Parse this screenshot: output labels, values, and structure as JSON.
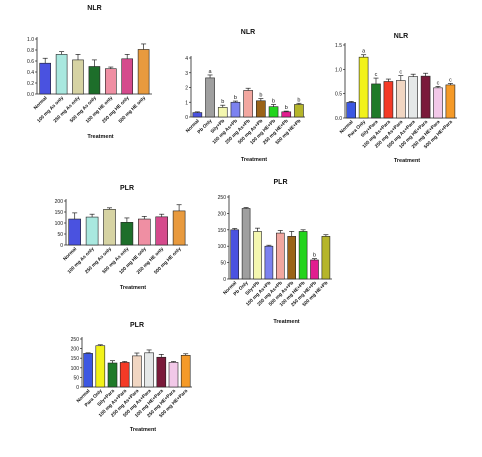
{
  "chart_data": [
    {
      "type": "bar",
      "title": "NLR",
      "xlabel": "Treatment",
      "ylabel": "",
      "ylim": [
        0,
        1.0
      ],
      "yticks": [
        "0.0",
        "0.2",
        "0.4",
        "0.6",
        "0.8",
        "1.0"
      ],
      "categories": [
        "Normal",
        "100 mg As only",
        "250 mg As only",
        "500 mg As only",
        "100 mg HE only",
        "250 mg HE only",
        "500 mg HE only"
      ],
      "values": [
        0.56,
        0.72,
        0.62,
        0.5,
        0.46,
        0.64,
        0.81
      ],
      "errors": [
        0.09,
        0.05,
        0.1,
        0.12,
        0.03,
        0.08,
        0.1
      ],
      "colors": [
        "#4a52e0",
        "#a9e8df",
        "#d6d3a3",
        "#1d6e2a",
        "#ef8fa3",
        "#d54a8c",
        "#e89a3e"
      ],
      "sig_labels": [
        "",
        "",
        "",
        "",
        "",
        "",
        ""
      ],
      "grid": false
    },
    {
      "type": "bar",
      "title": "NLR",
      "xlabel": "Treatment",
      "ylabel": "",
      "ylim": [
        0,
        4
      ],
      "yticks": [
        "0",
        "1",
        "2",
        "3",
        "4"
      ],
      "categories": [
        "Normal",
        "Pb Only",
        "Sily+Pb",
        "100 mg As+Pb",
        "250 mg As+Pb",
        "500 mg As+Pb",
        "100 mg HE+Pb",
        "250 mg HE+Pb",
        "500 mg HE+Pb"
      ],
      "values": [
        0.3,
        2.65,
        0.65,
        1.0,
        1.8,
        1.1,
        0.7,
        0.35,
        0.85
      ],
      "errors": [
        0.05,
        0.2,
        0.15,
        0.08,
        0.15,
        0.15,
        0.15,
        0.05,
        0.08
      ],
      "colors": [
        "#4a52e0",
        "#9f9f9f",
        "#f4f7b0",
        "#7c82f0",
        "#f2a7a0",
        "#9a6318",
        "#22d41d",
        "#e21d8f",
        "#b5b52a"
      ],
      "sig_labels": [
        "",
        "a",
        "b",
        "b",
        "",
        "b",
        "b",
        "b",
        "b"
      ],
      "grid": false
    },
    {
      "type": "bar",
      "title": "NLR",
      "xlabel": "Treatment",
      "ylabel": "",
      "ylim": [
        0,
        1.5
      ],
      "yticks": [
        "0.0",
        "0.5",
        "1.0",
        "1.5"
      ],
      "categories": [
        "Normal",
        "Para Only",
        "Sily+Para",
        "100 mg As+Para",
        "250 mg As+Para",
        "500 mg As+Para",
        "100 mg HE+Para",
        "250 mg HE+Para",
        "500 mg HE+Para"
      ],
      "values": [
        0.32,
        1.25,
        0.7,
        0.75,
        0.77,
        0.85,
        0.86,
        0.62,
        0.68
      ],
      "errors": [
        0.02,
        0.05,
        0.12,
        0.05,
        0.1,
        0.05,
        0.06,
        0.03,
        0.03
      ],
      "colors": [
        "#3c57e2",
        "#f2f21a",
        "#1f7a28",
        "#f43a26",
        "#f1d6c2",
        "#e5e8e8",
        "#7a1a3a",
        "#f2c8e8",
        "#f59a28"
      ],
      "sig_labels": [
        "",
        "a",
        "c",
        "",
        "c",
        "",
        "",
        "c",
        "c"
      ],
      "grid": false
    },
    {
      "type": "bar",
      "title": "PLR",
      "xlabel": "Treatment",
      "ylabel": "",
      "ylim": [
        0,
        200
      ],
      "yticks": [
        "0",
        "50",
        "100",
        "150",
        "200"
      ],
      "categories": [
        "Normal",
        "100 mg As only",
        "250 mg As only",
        "500 mg As only",
        "100 mg HE only",
        "250 mg HE only",
        "500 mg HE only"
      ],
      "values": [
        118,
        127,
        162,
        103,
        118,
        128,
        155
      ],
      "errors": [
        28,
        13,
        7,
        20,
        12,
        12,
        28
      ],
      "colors": [
        "#4a52e0",
        "#a9e8df",
        "#d6d3a3",
        "#1d6e2a",
        "#ef8fa3",
        "#d54a8c",
        "#e89a3e"
      ],
      "sig_labels": [
        "",
        "",
        "",
        "",
        "",
        "",
        ""
      ],
      "grid": false
    },
    {
      "type": "bar",
      "title": "PLR",
      "xlabel": "Treatment",
      "ylabel": "",
      "ylim": [
        0,
        250
      ],
      "yticks": [
        "0",
        "50",
        "100",
        "150",
        "200",
        "250"
      ],
      "categories": [
        "Normal",
        "Pb Only",
        "Sily+Pb",
        "100 mg As+Pb",
        "250 mg As+Pb",
        "500 mg As+Pb",
        "100 mg HE+Pb",
        "250 mg HE+Pb",
        "500 mg HE+Pb"
      ],
      "values": [
        150,
        215,
        145,
        100,
        140,
        130,
        145,
        58,
        130
      ],
      "errors": [
        4,
        3,
        10,
        3,
        8,
        15,
        5,
        4,
        5
      ],
      "colors": [
        "#4a52e0",
        "#9f9f9f",
        "#f4f7b0",
        "#7c82f0",
        "#f2a7a0",
        "#9a6318",
        "#22d41d",
        "#e21d8f",
        "#b5b52a"
      ],
      "sig_labels": [
        "",
        "",
        "",
        "",
        "",
        "",
        "",
        "b",
        ""
      ],
      "grid": false
    },
    {
      "type": "bar",
      "title": "PLR",
      "xlabel": "Treatment",
      "ylabel": "",
      "ylim": [
        0,
        250
      ],
      "yticks": [
        "0",
        "50",
        "100",
        "150",
        "200",
        "250"
      ],
      "categories": [
        "Normal",
        "Para Only",
        "Sily+Para",
        "100 mg As+Para",
        "250 mg As+Para",
        "500 mg As+Para",
        "100 mg HE+Para",
        "250 mg HE+Para",
        "500 mg HE+Para"
      ],
      "values": [
        175,
        215,
        125,
        128,
        162,
        178,
        155,
        128,
        165
      ],
      "errors": [
        3,
        5,
        12,
        5,
        15,
        15,
        15,
        5,
        8
      ],
      "colors": [
        "#3c57e2",
        "#f2f21a",
        "#1f7a28",
        "#f43a26",
        "#f1d6c2",
        "#e5e8e8",
        "#7a1a3a",
        "#f2c8e8",
        "#f59a28"
      ],
      "sig_labels": [
        "",
        "",
        "",
        "",
        "",
        "",
        "",
        "",
        ""
      ],
      "grid": false
    }
  ]
}
